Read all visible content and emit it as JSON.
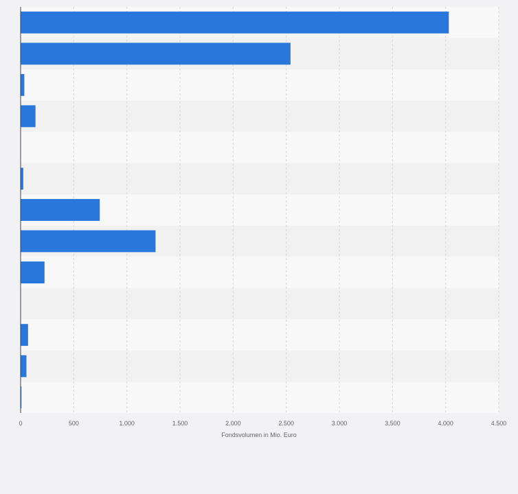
{
  "chart_data": {
    "type": "bar",
    "orientation": "horizontal",
    "categories": [
      "",
      "",
      "",
      "",
      "",
      "",
      "",
      "",
      "",
      "",
      "",
      "",
      ""
    ],
    "values": [
      4030,
      2540,
      35,
      140,
      0,
      25,
      745,
      1270,
      225,
      0,
      70,
      55,
      8
    ],
    "xlabel": "Fondsvolumen in Mio. Euro",
    "xlim": [
      0,
      4500
    ],
    "ticks": [
      {
        "value": 0,
        "label": "0"
      },
      {
        "value": 500,
        "label": "500"
      },
      {
        "value": 1000,
        "label": "1.000"
      },
      {
        "value": 1500,
        "label": "1.500"
      },
      {
        "value": 2000,
        "label": "2.000"
      },
      {
        "value": 2500,
        "label": "2.500"
      },
      {
        "value": 3000,
        "label": "3.000"
      },
      {
        "value": 3500,
        "label": "3.500"
      },
      {
        "value": 4000,
        "label": "4.000"
      },
      {
        "value": 4500,
        "label": "4.500"
      }
    ],
    "grid": true,
    "legend": "none",
    "colors": {
      "bar": "#2a77dc",
      "background": "#f2f2f4",
      "band_light": "#f8f8f9",
      "band_dark": "#f1f1f2",
      "grid": "#d7d7da",
      "axis": "#444444",
      "text": "#666666"
    }
  }
}
